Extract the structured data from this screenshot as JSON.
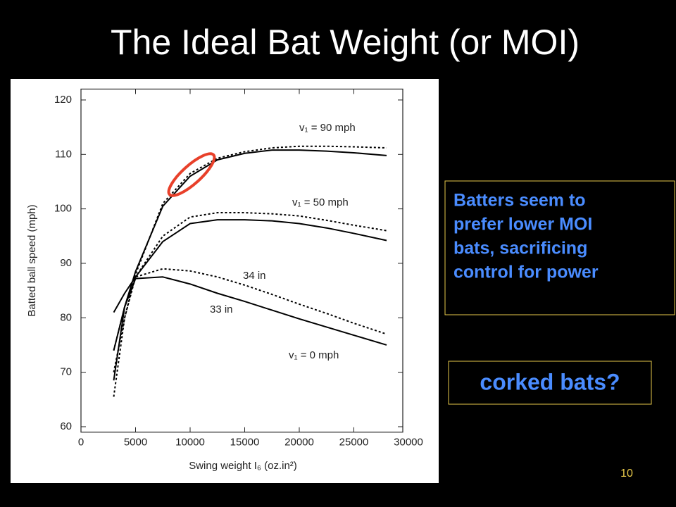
{
  "slide": {
    "title": "The Ideal Bat Weight (or MOI)",
    "callout": [
      "Batters seem to",
      "prefer lower MOI",
      "bats, sacrificing",
      "control for power"
    ],
    "question": "corked bats?",
    "page_number": "10"
  },
  "chart_data": {
    "type": "line",
    "x_label": "Swing weight I₆ (oz.in²)",
    "y_label": "Batted ball speed (mph)",
    "annotations": [
      "v₁ = 90 mph",
      "v₁ = 50 mph",
      "34 in",
      "33 in",
      "v₁ = 0 mph"
    ],
    "x": [
      3000,
      4000,
      5000,
      7500,
      10000,
      12500,
      15000,
      17500,
      20000,
      22500,
      25000,
      28000
    ],
    "series": [
      {
        "color": "#000000",
        "dashed": false,
        "values": [
          74,
          82,
          88.5,
          100.5,
          106,
          109,
          110.2,
          110.8,
          110.8,
          110.6,
          110.3,
          109.8
        ]
      },
      {
        "color": "#000000",
        "dashed": true,
        "values": [
          70,
          80,
          88,
          101,
          106.5,
          109.3,
          110.5,
          111.2,
          111.5,
          111.5,
          111.4,
          111.2
        ]
      },
      {
        "color": "#000000",
        "dashed": false,
        "values": [
          81,
          84.5,
          87.5,
          94,
          97.3,
          98,
          98,
          97.8,
          97.3,
          96.5,
          95.5,
          94.2
        ]
      },
      {
        "color": "#000000",
        "dashed": true,
        "values": [
          74,
          82,
          87.5,
          95,
          98.5,
          99.3,
          99.3,
          99.1,
          98.7,
          97.9,
          97,
          96
        ]
      },
      {
        "color": "#000000",
        "dashed": false,
        "values": [
          68.5,
          82,
          87.2,
          87.5,
          86.2,
          84.5,
          83,
          81.4,
          79.8,
          78.3,
          76.8,
          75
        ]
      },
      {
        "color": "#000000",
        "dashed": true,
        "values": [
          65.5,
          80,
          87.5,
          89,
          88.6,
          87.5,
          86,
          84.3,
          82.5,
          80.8,
          79,
          77
        ]
      }
    ],
    "xlim": [
      0,
      30000
    ],
    "xticks": [
      0,
      5000,
      10000,
      15000,
      20000,
      25000,
      30000
    ],
    "ylim": [
      59,
      122
    ],
    "yticks": [
      60,
      70,
      80,
      90,
      100,
      110,
      120
    ],
    "grid": false
  }
}
